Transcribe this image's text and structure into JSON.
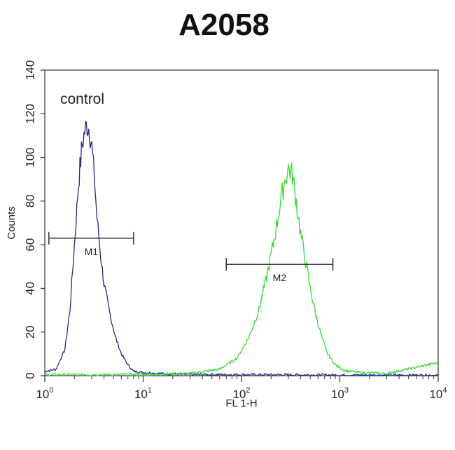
{
  "chart_data": {
    "type": "line",
    "title": "A2058",
    "xlabel": "FL 1-H",
    "ylabel": "Counts",
    "x_scale": "log",
    "xlim": [
      1,
      10000
    ],
    "ylim": [
      0,
      140
    ],
    "x_ticks": [
      {
        "base": "10",
        "exp": "0",
        "value": 1
      },
      {
        "base": "10",
        "exp": "1",
        "value": 10
      },
      {
        "base": "10",
        "exp": "2",
        "value": 100
      },
      {
        "base": "10",
        "exp": "3",
        "value": 1000
      },
      {
        "base": "10",
        "exp": "4",
        "value": 10000
      }
    ],
    "y_ticks": [
      "0",
      "20",
      "40",
      "60",
      "80",
      "100",
      "120",
      "140"
    ],
    "annotations": [
      {
        "text": "control"
      }
    ],
    "markers": [
      {
        "label": "M1",
        "x_start": 1.1,
        "x_end": 8.0,
        "y": 63
      },
      {
        "label": "M2",
        "x_start": 70,
        "x_end": 850,
        "y": 51
      }
    ],
    "series": [
      {
        "color": "#1f2a8a",
        "x": [
          1,
          1.3,
          1.6,
          1.8,
          2.0,
          2.2,
          2.4,
          2.55,
          2.7,
          2.85,
          3.0,
          3.2,
          3.4,
          3.7,
          4.0,
          4.5,
          5.2,
          6.0,
          7.0,
          8.0,
          10,
          15,
          30,
          100,
          1000,
          10000
        ],
        "y": [
          2,
          3,
          12,
          30,
          60,
          88,
          106,
          112,
          115,
          113,
          105,
          90,
          72,
          55,
          42,
          30,
          18,
          10,
          5,
          2,
          1.5,
          1,
          0.5,
          0.5,
          0.3,
          0.2
        ]
      },
      {
        "color": "#33dd33",
        "x": [
          1,
          10,
          30,
          60,
          90,
          120,
          150,
          180,
          210,
          240,
          270,
          300,
          330,
          360,
          400,
          450,
          500,
          570,
          650,
          750,
          900,
          1100,
          1500,
          3000,
          10000
        ],
        "y": [
          0.5,
          0.5,
          1,
          3,
          8,
          18,
          30,
          45,
          60,
          75,
          88,
          95,
          92,
          80,
          65,
          52,
          40,
          28,
          18,
          10,
          5,
          2.5,
          1.5,
          1,
          6
        ]
      }
    ]
  }
}
